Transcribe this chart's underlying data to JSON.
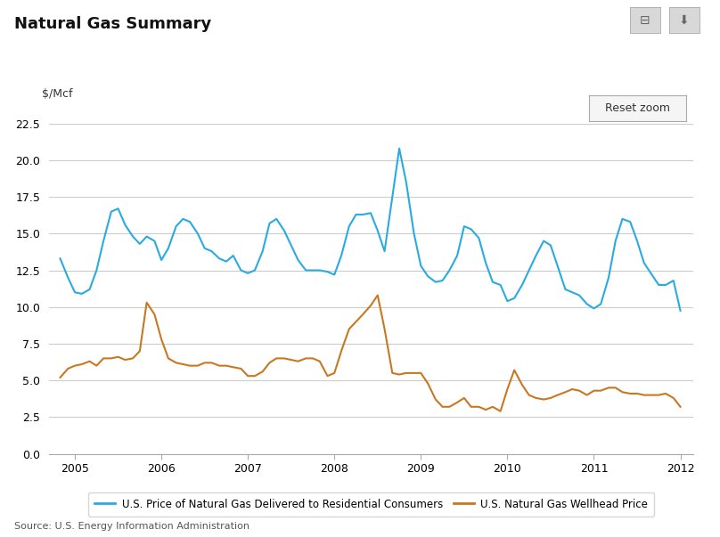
{
  "title": "Natural Gas Summary",
  "ylabel": "$/Mcf",
  "source": "Source: U.S. Energy Information Administration",
  "legend_residential": "U.S. Price of Natural Gas Delivered to Residential Consumers",
  "legend_wellhead": "U.S. Natural Gas Wellhead Price",
  "reset_zoom_label": "Reset zoom",
  "residential_color": "#29ABE2",
  "wellhead_color": "#C87820",
  "background_color": "#FFFFFF",
  "grid_color": "#CCCCCC",
  "ylim": [
    0.0,
    22.5
  ],
  "yticks": [
    0.0,
    2.5,
    5.0,
    7.5,
    10.0,
    12.5,
    15.0,
    17.5,
    20.0,
    22.5
  ],
  "residential_x": [
    2004.83,
    2004.92,
    2005.0,
    2005.08,
    2005.17,
    2005.25,
    2005.33,
    2005.42,
    2005.5,
    2005.58,
    2005.67,
    2005.75,
    2005.83,
    2005.92,
    2006.0,
    2006.08,
    2006.17,
    2006.25,
    2006.33,
    2006.42,
    2006.5,
    2006.58,
    2006.67,
    2006.75,
    2006.83,
    2006.92,
    2007.0,
    2007.08,
    2007.17,
    2007.25,
    2007.33,
    2007.42,
    2007.5,
    2007.58,
    2007.67,
    2007.75,
    2007.83,
    2007.92,
    2008.0,
    2008.08,
    2008.17,
    2008.25,
    2008.33,
    2008.42,
    2008.5,
    2008.58,
    2008.67,
    2008.75,
    2008.83,
    2008.92,
    2009.0,
    2009.08,
    2009.17,
    2009.25,
    2009.33,
    2009.42,
    2009.5,
    2009.58,
    2009.67,
    2009.75,
    2009.83,
    2009.92,
    2010.0,
    2010.08,
    2010.17,
    2010.25,
    2010.33,
    2010.42,
    2010.5,
    2010.58,
    2010.67,
    2010.75,
    2010.83,
    2010.92,
    2011.0,
    2011.08,
    2011.17,
    2011.25,
    2011.33,
    2011.42,
    2011.5,
    2011.58,
    2011.67,
    2011.75,
    2011.83,
    2011.92,
    2012.0
  ],
  "residential_y": [
    13.3,
    12.0,
    11.0,
    10.9,
    11.2,
    12.5,
    14.5,
    16.5,
    16.7,
    15.6,
    14.8,
    14.3,
    14.8,
    14.5,
    13.2,
    14.0,
    15.5,
    16.0,
    15.8,
    15.0,
    14.0,
    13.8,
    13.3,
    13.1,
    13.5,
    12.5,
    12.3,
    12.5,
    13.8,
    15.7,
    16.0,
    15.2,
    14.2,
    13.2,
    12.5,
    12.5,
    12.5,
    12.4,
    12.2,
    13.5,
    15.5,
    16.3,
    16.3,
    16.4,
    15.2,
    13.8,
    17.5,
    20.8,
    18.5,
    15.0,
    12.8,
    12.1,
    11.7,
    11.8,
    12.5,
    13.5,
    15.5,
    15.3,
    14.7,
    13.0,
    11.7,
    11.5,
    10.4,
    10.6,
    11.5,
    12.5,
    13.5,
    14.5,
    14.2,
    12.8,
    11.2,
    11.0,
    10.8,
    10.2,
    9.9,
    10.2,
    12.0,
    14.5,
    16.0,
    15.8,
    14.5,
    13.0,
    12.2,
    11.5,
    11.5,
    11.8,
    9.75
  ],
  "wellhead_x": [
    2004.83,
    2004.92,
    2005.0,
    2005.08,
    2005.17,
    2005.25,
    2005.33,
    2005.42,
    2005.5,
    2005.58,
    2005.67,
    2005.75,
    2005.83,
    2005.92,
    2006.0,
    2006.08,
    2006.17,
    2006.25,
    2006.33,
    2006.42,
    2006.5,
    2006.58,
    2006.67,
    2006.75,
    2006.83,
    2006.92,
    2007.0,
    2007.08,
    2007.17,
    2007.25,
    2007.33,
    2007.42,
    2007.5,
    2007.58,
    2007.67,
    2007.75,
    2007.83,
    2007.92,
    2008.0,
    2008.08,
    2008.17,
    2008.25,
    2008.33,
    2008.42,
    2008.5,
    2008.58,
    2008.67,
    2008.75,
    2008.83,
    2008.92,
    2009.0,
    2009.08,
    2009.17,
    2009.25,
    2009.33,
    2009.42,
    2009.5,
    2009.58,
    2009.67,
    2009.75,
    2009.83,
    2009.92,
    2010.0,
    2010.08,
    2010.17,
    2010.25,
    2010.33,
    2010.42,
    2010.5,
    2010.58,
    2010.67,
    2010.75,
    2010.83,
    2010.92,
    2011.0,
    2011.08,
    2011.17,
    2011.25,
    2011.33,
    2011.42,
    2011.5,
    2011.58,
    2011.67,
    2011.75,
    2011.83,
    2011.92,
    2012.0
  ],
  "wellhead_y": [
    5.2,
    5.8,
    6.0,
    6.1,
    6.3,
    6.0,
    6.5,
    6.5,
    6.6,
    6.4,
    6.5,
    7.0,
    10.3,
    9.5,
    7.8,
    6.5,
    6.2,
    6.1,
    6.0,
    6.0,
    6.2,
    6.2,
    6.0,
    6.0,
    5.9,
    5.8,
    5.3,
    5.3,
    5.6,
    6.2,
    6.5,
    6.5,
    6.4,
    6.3,
    6.5,
    6.5,
    6.3,
    5.3,
    5.5,
    7.0,
    8.5,
    9.0,
    9.5,
    10.1,
    10.8,
    8.5,
    5.5,
    5.4,
    5.5,
    5.5,
    5.5,
    4.8,
    3.7,
    3.2,
    3.2,
    3.5,
    3.8,
    3.2,
    3.2,
    3.0,
    3.2,
    2.9,
    4.4,
    5.7,
    4.7,
    4.0,
    3.8,
    3.7,
    3.8,
    4.0,
    4.2,
    4.4,
    4.3,
    4.0,
    4.3,
    4.3,
    4.5,
    4.5,
    4.2,
    4.1,
    4.1,
    4.0,
    4.0,
    4.0,
    4.1,
    3.8,
    3.2
  ],
  "xticks": [
    2005.0,
    2006.0,
    2007.0,
    2008.0,
    2009.0,
    2010.0,
    2011.0,
    2012.0
  ],
  "xtick_labels": [
    "2005",
    "2006",
    "2007",
    "2008",
    "2009",
    "2010",
    "2011",
    "2012"
  ],
  "xlim": [
    2004.7,
    2012.15
  ]
}
